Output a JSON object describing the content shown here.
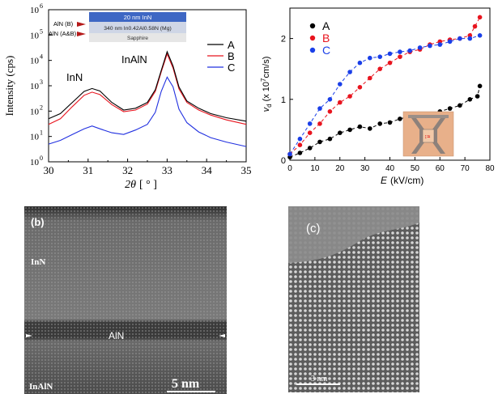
{
  "xrd": {
    "ylabel": "Intensity (cps)",
    "xlabel_sym": "2θ",
    "xlabel_unit": "[ ° ]",
    "peak_inn": "InN",
    "peak_inaln": "InAlN",
    "arrow_b": "AlN (B)",
    "arrow_ab": "AlN (A&B)",
    "stack": {
      "top": "20 nm InN",
      "mid": "340 nm In0.42Al0.58N (Mg)",
      "bottom": "Sapphire"
    },
    "legend": [
      "A",
      "B",
      "C"
    ],
    "xticks": [
      "30",
      "31",
      "32",
      "33",
      "34",
      "35"
    ],
    "yticks": [
      "10",
      "10",
      "10",
      "10",
      "10",
      "10",
      "10"
    ],
    "yexps": [
      "0",
      "1",
      "2",
      "3",
      "4",
      "5",
      "6"
    ],
    "colors": {
      "A": "#000000",
      "B": "#e8141e",
      "C": "#2130e0"
    }
  },
  "chart_data": [
    {
      "type": "line",
      "xlabel": "2θ [ ° ]",
      "ylabel": "Intensity (cps)",
      "xlim": [
        30,
        35
      ],
      "ylim": [
        1,
        1000000
      ],
      "yscale": "log",
      "series": [
        {
          "name": "A",
          "x": [
            30.0,
            30.3,
            30.6,
            30.9,
            31.1,
            31.3,
            31.6,
            31.9,
            32.2,
            32.5,
            32.7,
            32.85,
            33.0,
            33.15,
            33.3,
            33.5,
            33.8,
            34.1,
            34.5,
            35.0
          ],
          "y": [
            50,
            80,
            220,
            600,
            780,
            620,
            220,
            110,
            130,
            220,
            700,
            4000,
            22000,
            6000,
            900,
            250,
            130,
            80,
            55,
            40
          ]
        },
        {
          "name": "B",
          "x": [
            30.0,
            30.3,
            30.6,
            30.9,
            31.1,
            31.3,
            31.6,
            31.9,
            32.2,
            32.5,
            32.7,
            32.85,
            33.0,
            33.15,
            33.3,
            33.5,
            33.8,
            34.1,
            34.5,
            35.0
          ],
          "y": [
            30,
            50,
            150,
            420,
            560,
            450,
            180,
            95,
            110,
            190,
            600,
            3500,
            18000,
            5000,
            750,
            220,
            110,
            70,
            45,
            30
          ]
        },
        {
          "name": "C",
          "x": [
            30.0,
            30.3,
            30.6,
            30.9,
            31.1,
            31.3,
            31.6,
            31.9,
            32.2,
            32.5,
            32.7,
            32.85,
            33.0,
            33.15,
            33.3,
            33.5,
            33.8,
            34.1,
            34.5,
            35.0
          ],
          "y": [
            5,
            7,
            12,
            20,
            26,
            20,
            14,
            12,
            18,
            30,
            90,
            600,
            2200,
            900,
            120,
            35,
            15,
            9,
            6,
            4
          ]
        }
      ]
    },
    {
      "type": "scatter",
      "xlabel": "E (kV/cm)",
      "ylabel": "vd (x 10^7 cm/s)",
      "xlim": [
        0,
        80
      ],
      "ylim": [
        0,
        2.5
      ],
      "series": [
        {
          "name": "A",
          "x": [
            0,
            4,
            8,
            12,
            16,
            20,
            24,
            28,
            32,
            36,
            40,
            44,
            48,
            52,
            56,
            60,
            64,
            68,
            72,
            75,
            76
          ],
          "y": [
            0.05,
            0.12,
            0.2,
            0.3,
            0.35,
            0.45,
            0.5,
            0.55,
            0.52,
            0.6,
            0.62,
            0.68,
            0.72,
            0.7,
            0.75,
            0.8,
            0.85,
            0.9,
            1.0,
            1.05,
            1.22
          ]
        },
        {
          "name": "B",
          "x": [
            0,
            4,
            8,
            12,
            16,
            20,
            24,
            28,
            32,
            36,
            40,
            44,
            48,
            52,
            56,
            60,
            64,
            68,
            72,
            74,
            76
          ],
          "y": [
            0.1,
            0.25,
            0.45,
            0.6,
            0.8,
            0.95,
            1.05,
            1.2,
            1.35,
            1.5,
            1.6,
            1.7,
            1.78,
            1.82,
            1.9,
            1.95,
            1.98,
            2.0,
            2.05,
            2.2,
            2.35
          ]
        },
        {
          "name": "C",
          "x": [
            0,
            4,
            8,
            12,
            16,
            20,
            24,
            28,
            32,
            36,
            40,
            44,
            48,
            52,
            56,
            60,
            64,
            68,
            72,
            76
          ],
          "y": [
            0.1,
            0.35,
            0.6,
            0.85,
            1.0,
            1.25,
            1.45,
            1.6,
            1.68,
            1.7,
            1.75,
            1.78,
            1.8,
            1.85,
            1.88,
            1.9,
            1.95,
            2.0,
            2.0,
            2.05
          ]
        }
      ]
    }
  ],
  "vd": {
    "ylabel_sym": "v",
    "ylabel_sub": "d",
    "ylabel_rest": "(x 10",
    "ylabel_exp": "7",
    "ylabel_unit": "cm/s)",
    "xlabel_sym": "E",
    "xlabel_unit": "(kV/cm)",
    "legend": [
      "A",
      "B",
      "C"
    ],
    "xticks": [
      "0",
      "10",
      "20",
      "30",
      "40",
      "50",
      "60",
      "70",
      "80"
    ],
    "yticks": [
      "0",
      "1",
      "2"
    ],
    "colors": {
      "A": "#000000",
      "B": "#e8141e",
      "C": "#1a3fe8"
    }
  },
  "tem_b": {
    "tag": "(b)",
    "label_inn": "InN",
    "label_aln": "AlN",
    "label_inaln": "InAlN",
    "scale": "5 nm"
  },
  "tem_c": {
    "tag": "(c)",
    "scale": "3 nm"
  }
}
